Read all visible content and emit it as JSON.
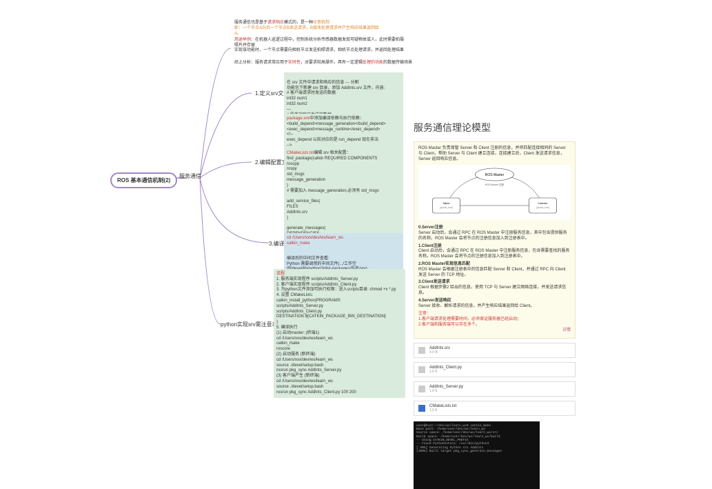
{
  "mindmap": {
    "root": "ROS 基本通信机制(2)",
    "main_branch": "服务通信",
    "top_note": {
      "line1_a": "服务通信也是基于",
      "line1_b": "请求响应",
      "line1_c": "模式的，是一种",
      "line1_d": "应答机制",
      "line2": "即：一个节点A向另一个节点B发送请求，B接收处理请求并产生响应结果返回给A。",
      "ex_title": "用途举例：",
      "ex_text": "在机器人巡逻过程中，控制系统分析传感器数据发现可疑物体或人，此时需要拍摄照片并存留",
      "detail": "实现该功能时，一个节点需要向相机节点发送拍照请求，相机节点处理请求，并返回处理结果",
      "summary_a": "综上分析：服务请求常应用于",
      "summary_b": "实时性",
      "summary_c": "，对要求较高操作，具有一定逻辑",
      "summary_d": "处理的功能",
      "summary_e": "的数据传输场景"
    },
    "srv_branch": {
      "label": "1.定义srv文件",
      "body": "在 srv 文件中请求和响应的信息 --- 分割\n功能包下新建 srv 目录，添加 AddInts.srv 文件，内容:\n# 客户端请求时发送的数据\nint32 num1\nint32 num2\n---\n# 服务端响应发送的数据\nint32 sum"
    },
    "srv_highlight": "AddInts.srv",
    "config_branch": {
      "label": "2.编辑配置文件",
      "part1_a": "package.xml",
      "part1_b": "中添加编译依赖与执行依赖：",
      "part1_body": "<build_depend>message_generation</build_depend>\n<exec_depend>message_runtime</exec_depend>\n<!--\nexec_depend 以前对应的是 run_depend 现在非法\n-->",
      "part2_a": "CMakeLists.txt",
      "part2_b": "编辑 srv 相关配置：",
      "part2_body": "find_package(catkin REQUIRED COMPONENTS\n  roscpp\n  rospy\n  std_msgs\n  message_generation\n)\n# 需要加入 message_generation,必须有 std_msgs\n\nadd_service_files(\n  FILES\n  AddInts.srv\n)\n\ngenerate_messages(\n  DEPENDENCIES\n  std_msgs\n)"
    },
    "compile_branch": {
      "label": "3.编译",
      "body1": "cd /Users/xxx/dev/ws/learn_ws\ncatkin_make",
      "body2": "编译后的中间文件查看:\nPython 需要调用的中间文件(.../工作空间/devel/lib/python3/dist-packages/包名/srv)"
    },
    "compile_highlight": ".../工作空间/devel/lib/python3/dist-packages/包名/srv",
    "python_branch": {
      "label": "python实现srv需注意事项",
      "title": "流程",
      "body": "1. 服务端实现程序 scripts/AddInts_Server.py\n2. 客户端实现程序 scripts/AddInts_Client.py\n3. 为python文件添加可执行权限：进入scripts目录: chmod +x *.py\n4. 设置 CMakeLists:\ncatkin_install_python(PROGRAMS\n  scripts/AddInts_Server.py\n  scripts/AddInts_Client.py\n  DESTINATION ${CATKIN_PACKAGE_BIN_DESTINATION}\n)\n5. 编译执行\n(1) 启动master: (终端1)\ncd /Users/xxx/dev/ws/learn_ws\ncatkin_make\nroscore\n(2) 启动服务 (新终端)\ncd /Users/xxx/dev/ws/learn_ws\nsource ./devel/setup.bash\nrosrun pkg_sync AddInts_Server.py\n(3) 客户端产生 (新终端)\ncd /Users/xxx/dev/ws/learn_ws\nsource ./devel/setup.bash\nrosrun pkg_sync AddInts_Client.py 100 200"
    }
  },
  "right": {
    "title": "服务通信理论模型",
    "card_top": "ROS Master 负责保管 Server 和 Client 注册的信息，并将匹配连接相同的 Server 与 Client，帮助 Server 与 Client 建立连接，连接建立后，Client 发送请求信息，Server 返回响应信息。",
    "diagram": {
      "master": "ROS Master",
      "talker": "Talker\n(plumb_test)",
      "listener": "Listener\n(plumb_test)",
      "topic": "(1) register  (2) register",
      "match": "ROS Master 匹配"
    },
    "steps": {
      "s0t": "0.Server注册",
      "s0": "Server 启动后，会通过 RPC 在 ROS Master 中注册服务信息，其中包含提供服务的名称。ROS Master 会将节点的注册信息加入到注册表中。",
      "s1t": "1.Client注册",
      "s1": "Client 启动后，会通过 RPC 在 ROS Master 中注册服务信息，包含需要查找的服务名称。ROS Master 会将节点的注册信息加入到注册表中。",
      "s2t": "2.ROS Master实现信息匹配",
      "s2": "ROS Master 会根据注册表中的信息匹配 Server 和 Client，并通过 RPC 向 Client 发送 Server 的 TCP 地址。",
      "s3t": "3.Client发送请求",
      "s3": "Client 根据步骤2 给出的信息，使用 TCP 与 Server 建立网络连接，并发送请求信息。",
      "s4t": "4.Server发送响应",
      "s4": "Server 接收、解析请求的信息，并产生响应结果返回给 Client。",
      "notes_t": "注意：",
      "notes": "1.客户端请求处理需要时间，必须保证服务器已经启动；\n2.客户端和服务端可以存在多个。"
    },
    "footer_link": "详情",
    "files": [
      {
        "name": "AddInts.srv",
        "size": "4.0 B"
      },
      {
        "name": "AddInts_Client.py",
        "size": "1.0 K"
      },
      {
        "name": "AddInts_Server.py",
        "size": "1.0 K"
      },
      {
        "name": "CMakeLists.txt",
        "size": "1.0 K",
        "blue": true
      }
    ],
    "terminal_lines": "user@host:~/dev/ws/learn_ws$ catkin_make\nBase path: /home/user/dev/ws/learn_ws\nSource space: /home/user/dev/ws/learn_ws/src\nBuild space: /home/user/dev/ws/learn_ws/build\n-- Using CATKIN_DEVEL_PREFIX\n-- Found PythonInterp: /usr/bin/python3\n[ 50%] Generating Python srv AddInts\n[100%] Built target pkg_sync_generate_messages"
  }
}
